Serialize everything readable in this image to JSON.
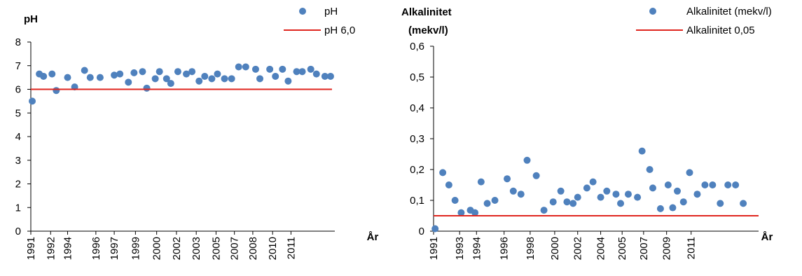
{
  "chart_data": [
    {
      "type": "scatter",
      "title": "",
      "ylabel": "pH",
      "xlabel": "År",
      "xlim": [
        1991.0,
        2012.5
      ],
      "ylim": [
        0,
        8
      ],
      "yticks": [
        "0",
        "1",
        "2",
        "3",
        "4",
        "5",
        "6",
        "7",
        "8"
      ],
      "xtick_labels": [
        "1991",
        "1992",
        "1994",
        "1996",
        "1997",
        "1999",
        "2000",
        "2002",
        "2003",
        "2005",
        "2007",
        "2008",
        "2010",
        "2011"
      ],
      "legend_position": "top-right",
      "series": [
        {
          "name": "pH",
          "kind": "points",
          "color": "#4f81bd",
          "x": [
            1991.1,
            1991.6,
            1991.9,
            1992.5,
            1992.8,
            1993.6,
            1994.1,
            1994.8,
            1995.2,
            1995.9,
            1996.9,
            1997.3,
            1997.9,
            1998.3,
            1998.9,
            1999.2,
            1999.8,
            2000.1,
            2000.6,
            2000.9,
            2001.4,
            2002.0,
            2002.4,
            2002.9,
            2003.3,
            2003.8,
            2004.2,
            2004.7,
            2005.2,
            2005.7,
            2006.2,
            2006.9,
            2007.2,
            2007.9,
            2008.3,
            2008.8,
            2009.2,
            2009.8,
            2010.2,
            2010.8,
            2011.2,
            2011.8,
            2012.2
          ],
          "y": [
            5.5,
            6.65,
            6.55,
            6.65,
            5.95,
            6.5,
            6.1,
            6.8,
            6.5,
            6.5,
            6.6,
            6.65,
            6.3,
            6.7,
            6.75,
            6.05,
            6.45,
            6.75,
            6.45,
            6.25,
            6.75,
            6.65,
            6.75,
            6.35,
            6.55,
            6.45,
            6.65,
            6.45,
            6.45,
            6.95,
            6.95,
            6.85,
            6.45,
            6.85,
            6.55,
            6.85,
            6.35,
            6.75,
            6.75,
            6.85,
            6.65,
            6.55,
            6.55
          ]
        },
        {
          "name": "pH 6,0",
          "kind": "line",
          "color": "#e0261f",
          "x": [
            1991.0,
            2012.3
          ],
          "y": [
            6.0,
            6.0
          ]
        }
      ]
    },
    {
      "type": "scatter",
      "title": "",
      "ylabel": "Alkalinitet (mekv/l)",
      "ylabel_lines": [
        "Alkalinitet",
        "(mekv/l)"
      ],
      "xlabel": "År",
      "xlim": [
        1991.0,
        2012.2
      ],
      "ylim": [
        0,
        0.6
      ],
      "yticks": [
        "0",
        "0,1",
        "0,2",
        "0,3",
        "0,4",
        "0,5",
        "0,6"
      ],
      "xtick_labels": [
        "1991",
        "1993",
        "1994",
        "1996",
        "1998",
        "2000",
        "2002",
        "2004",
        "2005",
        "2007",
        "2009",
        "2011"
      ],
      "legend_position": "top-right",
      "series": [
        {
          "name": "Alkalinitet (mekv/l)",
          "kind": "points",
          "color": "#4f81bd",
          "x": [
            1991.1,
            1991.6,
            1992.0,
            1992.4,
            1992.8,
            1993.4,
            1993.7,
            1994.1,
            1994.5,
            1995.0,
            1995.8,
            1996.2,
            1996.7,
            1997.1,
            1997.7,
            1998.2,
            1998.8,
            1999.3,
            1999.7,
            2000.1,
            2000.4,
            2001.0,
            2001.4,
            2001.9,
            2002.3,
            2002.9,
            2003.2,
            2003.7,
            2004.3,
            2004.6,
            2005.1,
            2005.3,
            2005.8,
            2006.3,
            2006.6,
            2006.9,
            2007.3,
            2007.7,
            2008.2,
            2008.7,
            2009.2,
            2009.7,
            2010.2,
            2010.7,
            2011.2
          ],
          "y": [
            0.008,
            0.19,
            0.15,
            0.1,
            0.06,
            0.068,
            0.06,
            0.16,
            0.09,
            0.1,
            0.17,
            0.13,
            0.12,
            0.23,
            0.18,
            0.068,
            0.095,
            0.13,
            0.095,
            0.09,
            0.11,
            0.14,
            0.16,
            0.11,
            0.13,
            0.12,
            0.09,
            0.12,
            0.11,
            0.26,
            0.2,
            0.14,
            0.073,
            0.15,
            0.076,
            0.13,
            0.095,
            0.19,
            0.12,
            0.15,
            0.15,
            0.09,
            0.15,
            0.15,
            0.09
          ]
        },
        {
          "name": "Alkalinitet 0,05",
          "kind": "line",
          "color": "#e0261f",
          "x": [
            1991.0,
            2012.2
          ],
          "y": [
            0.05,
            0.05
          ]
        }
      ]
    }
  ]
}
